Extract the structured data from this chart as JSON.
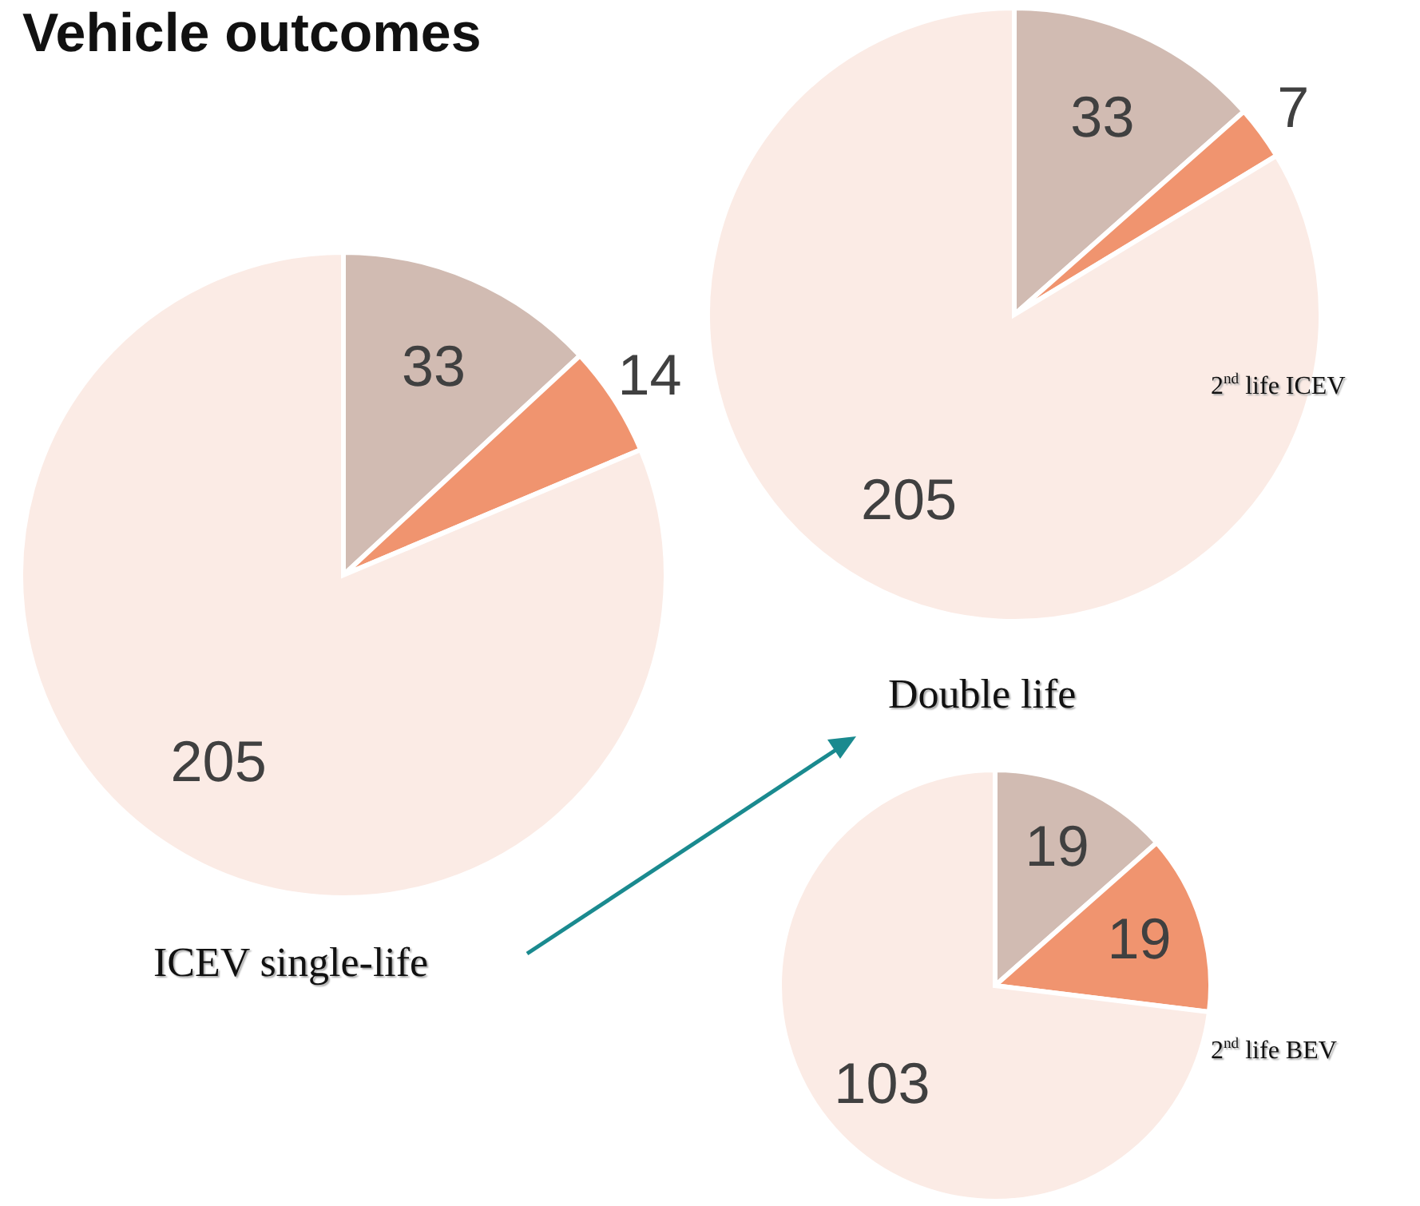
{
  "chart_data": [
    {
      "type": "pie",
      "title": "Vehicle outcomes",
      "categories": [
        null,
        null,
        null
      ],
      "values": [
        33,
        14,
        205
      ],
      "colors": [
        "#d1bbb2",
        "#f0946f",
        "#fbebe5"
      ],
      "data_labels": true,
      "annotations": [
        "ICEV single-life"
      ]
    },
    {
      "type": "pie",
      "categories": [
        null,
        null,
        null
      ],
      "values": [
        33,
        7,
        205
      ],
      "colors": [
        "#d1bbb2",
        "#f0946f",
        "#fbebe5"
      ],
      "data_labels": true,
      "annotations": [
        "2$^{nd}$ life ICEV"
      ]
    },
    {
      "type": "pie",
      "categories": [
        null,
        null,
        null
      ],
      "values": [
        19,
        19,
        103
      ],
      "colors": [
        "#d1bbb2",
        "#f0946f",
        "#fbebe5"
      ],
      "data_labels": true,
      "annotations": [
        "Double life",
        "2$^{nd}$ life BEV"
      ]
    }
  ]
}
